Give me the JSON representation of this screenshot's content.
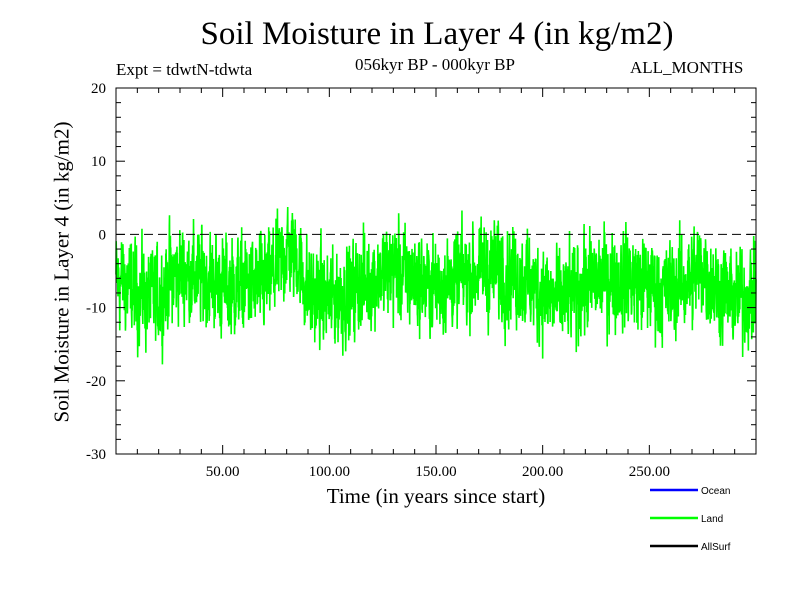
{
  "chart_data": {
    "type": "line",
    "title": "Soil Moisture in Layer 4 (in kg/m2)",
    "subtitle_left": "Expt = tdwtN-tdwta",
    "subtitle_center": "056kyr BP - 000kyr BP",
    "subtitle_right": "ALL_MONTHS",
    "xlabel": "Time (in years since start)",
    "ylabel": "Soil Moisture in Layer 4 (in kg/m2)",
    "xlim": [
      0,
      300
    ],
    "ylim": [
      -30,
      20
    ],
    "x_ticks": [
      50,
      100,
      150,
      200,
      250
    ],
    "x_tick_labels": [
      "50.00",
      "100.00",
      "150.00",
      "200.00",
      "250.00"
    ],
    "y_ticks": [
      20,
      10,
      0,
      -10,
      -20,
      -30
    ],
    "y_tick_labels": [
      "20",
      "10",
      "0",
      "-10",
      "-20",
      "-30"
    ],
    "reference_line": 0,
    "series": [
      {
        "name": "Land",
        "color": "#00ff00",
        "smoothing_months": 1,
        "noise_amplitude": 5.2,
        "baseline_points": [
          [
            0,
            -6
          ],
          [
            10,
            -8
          ],
          [
            20,
            -9
          ],
          [
            25,
            -6
          ],
          [
            30,
            -5
          ],
          [
            40,
            -6
          ],
          [
            50,
            -7
          ],
          [
            60,
            -7
          ],
          [
            70,
            -7
          ],
          [
            75,
            -5
          ],
          [
            80,
            -2
          ],
          [
            85,
            -3
          ],
          [
            90,
            -8
          ],
          [
            100,
            -9
          ],
          [
            110,
            -8
          ],
          [
            120,
            -6
          ],
          [
            130,
            -5
          ],
          [
            140,
            -6
          ],
          [
            150,
            -7
          ],
          [
            160,
            -6
          ],
          [
            170,
            -5
          ],
          [
            180,
            -5
          ],
          [
            190,
            -6
          ],
          [
            200,
            -8
          ],
          [
            205,
            -9
          ],
          [
            210,
            -9
          ],
          [
            220,
            -7
          ],
          [
            230,
            -6
          ],
          [
            240,
            -6
          ],
          [
            250,
            -7
          ],
          [
            260,
            -8
          ],
          [
            270,
            -6
          ],
          [
            275,
            -4
          ],
          [
            280,
            -7
          ],
          [
            290,
            -9
          ],
          [
            300,
            -8
          ]
        ]
      },
      {
        "name": "Ocean",
        "color": "#0000ff"
      },
      {
        "name": "AllSurf",
        "color": "#000000"
      }
    ],
    "legend": {
      "placement": "bottom-right",
      "entries": [
        {
          "label": "Ocean",
          "color": "#0000ff"
        },
        {
          "label": "Land",
          "color": "#00ff00"
        },
        {
          "label": "AllSurf",
          "color": "#000000"
        }
      ]
    }
  }
}
